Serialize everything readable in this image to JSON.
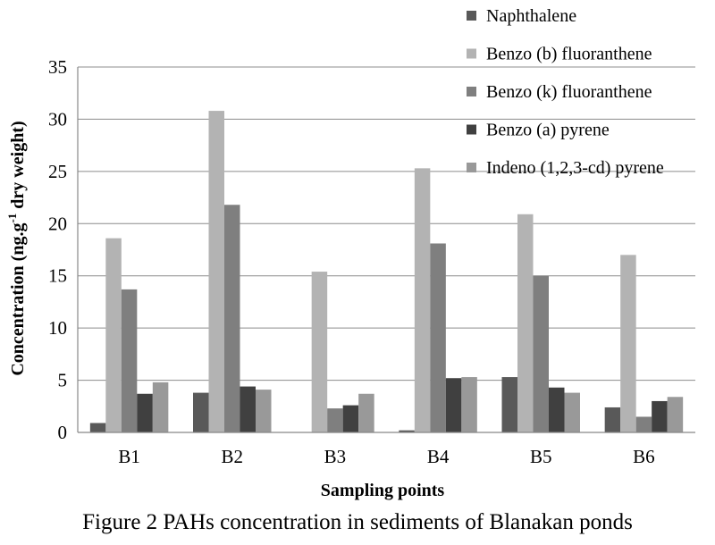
{
  "chart_data": {
    "type": "bar",
    "categories": [
      "B1",
      "B2",
      "B3",
      "B4",
      "B5",
      "B6"
    ],
    "series": [
      {
        "name": "Naphthalene",
        "values": [
          0.9,
          3.8,
          0.0,
          0.2,
          5.3,
          2.4
        ],
        "color": "#595959"
      },
      {
        "name": "Benzo (b) fluoranthene",
        "values": [
          18.6,
          30.8,
          15.4,
          25.3,
          20.9,
          17.0
        ],
        "color": "#b3b3b3"
      },
      {
        "name": "Benzo (k) fluoranthene",
        "values": [
          13.7,
          21.8,
          2.3,
          18.1,
          15.0,
          1.5
        ],
        "color": "#7f7f7f"
      },
      {
        "name": "Benzo (a) pyrene",
        "values": [
          3.7,
          4.4,
          2.6,
          5.2,
          4.3,
          3.0
        ],
        "color": "#404040"
      },
      {
        "name": "Indeno (1,2,3-cd) pyrene",
        "values": [
          4.8,
          4.1,
          3.7,
          5.3,
          3.8,
          3.4
        ],
        "color": "#999999"
      }
    ],
    "xlabel": "Sampling points",
    "ylabel_main": "Concentration (ng.g",
    "ylabel_sup": "-1",
    "ylabel_end": " dry weight)",
    "ylim": [
      0,
      35
    ],
    "yticks": [
      "0",
      "5",
      "10",
      "15",
      "20",
      "25",
      "30",
      "35"
    ],
    "grid": true,
    "legend_position": "top-right"
  },
  "caption": "Figure 2 PAHs concentration in sediments of Blanakan ponds"
}
